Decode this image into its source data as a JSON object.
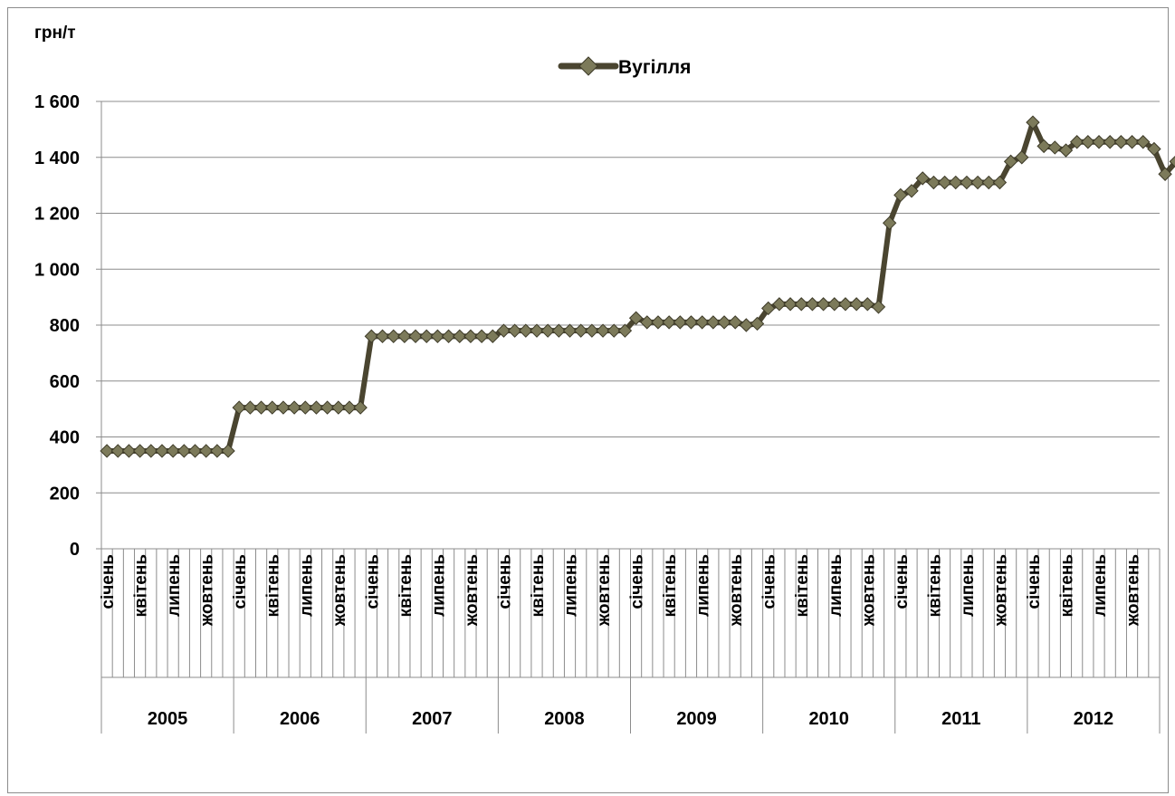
{
  "chart_data": {
    "type": "line",
    "ylabel": "грн/т",
    "ylim": [
      0,
      1600
    ],
    "yticks": [
      0,
      200,
      400,
      600,
      800,
      1000,
      1200,
      1400,
      1600
    ],
    "ytick_labels": [
      "0",
      "200",
      "400",
      "600",
      "800",
      "1 000",
      "1 200",
      "1 400",
      "1 600"
    ],
    "years": [
      "2005",
      "2006",
      "2007",
      "2008",
      "2009",
      "2010",
      "2011",
      "2012"
    ],
    "month_labels": [
      "січень",
      "квітень",
      "липень",
      "жовтень"
    ],
    "grid": "horizontal",
    "legend_position": "top-center",
    "series": [
      {
        "name": "Вугілля",
        "color": "#4a4530",
        "marker": "diamond",
        "values": [
          350,
          350,
          350,
          350,
          350,
          350,
          350,
          350,
          350,
          350,
          350,
          350,
          505,
          505,
          505,
          505,
          505,
          505,
          505,
          505,
          505,
          505,
          505,
          505,
          760,
          760,
          760,
          760,
          760,
          760,
          760,
          760,
          760,
          760,
          760,
          760,
          780,
          780,
          780,
          780,
          780,
          780,
          780,
          780,
          780,
          780,
          780,
          780,
          825,
          810,
          810,
          810,
          810,
          810,
          810,
          810,
          810,
          810,
          800,
          805,
          860,
          875,
          875,
          875,
          875,
          875,
          875,
          875,
          875,
          875,
          865,
          1165,
          1265,
          1280,
          1325,
          1310,
          1310,
          1310,
          1310,
          1310,
          1310,
          1310,
          1385,
          1400,
          1525,
          1440,
          1435,
          1425,
          1455,
          1455,
          1455,
          1455,
          1455,
          1455,
          1455,
          1430,
          1340,
          1385
        ]
      }
    ]
  }
}
